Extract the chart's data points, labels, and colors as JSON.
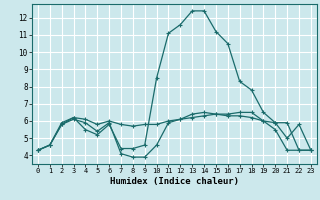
{
  "title": "",
  "xlabel": "Humidex (Indice chaleur)",
  "ylabel": "",
  "bg_color": "#cce8ec",
  "grid_color": "#ffffff",
  "line_color": "#1a6b6b",
  "xlim": [
    -0.5,
    23.5
  ],
  "ylim": [
    3.5,
    12.8
  ],
  "xticks": [
    0,
    1,
    2,
    3,
    4,
    5,
    6,
    7,
    8,
    9,
    10,
    11,
    12,
    13,
    14,
    15,
    16,
    17,
    18,
    19,
    20,
    21,
    22,
    23
  ],
  "yticks": [
    4,
    5,
    6,
    7,
    8,
    9,
    10,
    11,
    12
  ],
  "series": [
    [
      4.3,
      4.6,
      5.8,
      6.1,
      5.9,
      5.4,
      5.9,
      4.1,
      3.9,
      3.9,
      4.6,
      5.9,
      6.1,
      6.4,
      6.5,
      6.4,
      6.3,
      6.3,
      6.2,
      6.0,
      5.5,
      4.3,
      4.3,
      4.3
    ],
    [
      4.3,
      4.6,
      5.8,
      6.2,
      6.1,
      5.8,
      6.0,
      5.8,
      5.7,
      5.8,
      5.8,
      6.0,
      6.1,
      6.2,
      6.3,
      6.4,
      6.4,
      6.5,
      6.5,
      6.0,
      5.9,
      5.9,
      4.3,
      4.3
    ],
    [
      4.3,
      4.6,
      5.9,
      6.2,
      5.5,
      5.2,
      5.8,
      4.4,
      4.4,
      4.6,
      8.5,
      11.1,
      11.6,
      12.4,
      12.4,
      11.2,
      10.5,
      8.3,
      7.8,
      6.5,
      5.9,
      5.0,
      5.8,
      4.3
    ]
  ]
}
